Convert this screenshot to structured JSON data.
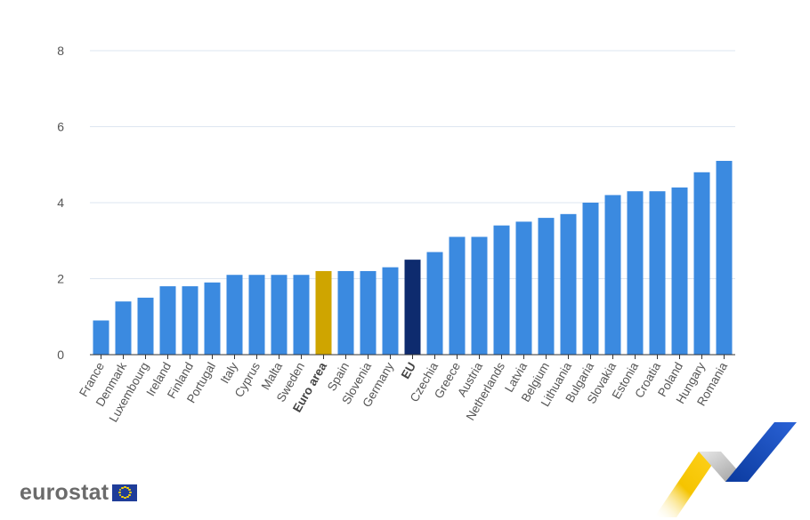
{
  "chart_data": {
    "type": "bar",
    "title": "",
    "xlabel": "",
    "ylabel": "",
    "ylim": [
      0,
      8
    ],
    "yticks": [
      0,
      2,
      4,
      6,
      8
    ],
    "grid": true,
    "categories": [
      "France",
      "Denmark",
      "Luxembourg",
      "Ireland",
      "Finland",
      "Portugal",
      "Italy",
      "Cyprus",
      "Malta",
      "Sweden",
      "Euro area",
      "Spain",
      "Slovenia",
      "Germany",
      "EU",
      "Czechia",
      "Greece",
      "Austria",
      "Netherlands",
      "Latvia",
      "Belgium",
      "Lithuania",
      "Bulgaria",
      "Slovakia",
      "Estonia",
      "Croatia",
      "Poland",
      "Hungary",
      "Romania"
    ],
    "values": [
      0.9,
      1.4,
      1.5,
      1.8,
      1.8,
      1.9,
      2.1,
      2.1,
      2.1,
      2.1,
      2.2,
      2.2,
      2.2,
      2.3,
      2.5,
      2.7,
      3.1,
      3.1,
      3.4,
      3.5,
      3.6,
      3.7,
      4.0,
      4.2,
      4.3,
      4.3,
      4.4,
      4.8,
      5.1
    ],
    "highlight": {
      "Euro area": "#cfa500",
      "EU": "#0e2b6e"
    },
    "bold_labels": [
      "Euro area",
      "EU"
    ],
    "colors": {
      "bar": "#3b8ae0",
      "grid": "#dde6f0",
      "axis": "#333333"
    }
  },
  "branding": {
    "logo_text": "eurostat"
  }
}
